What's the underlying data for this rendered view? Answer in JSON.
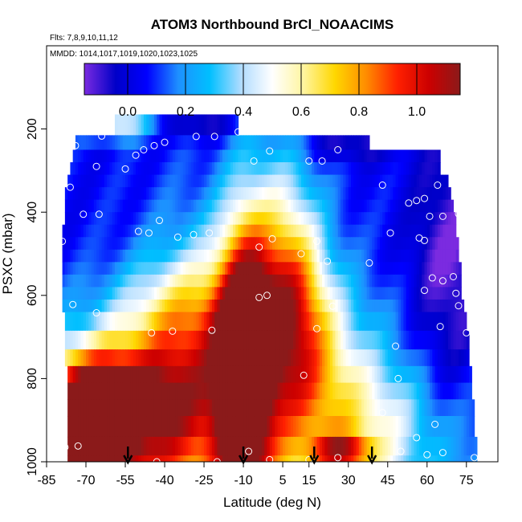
{
  "chart_data": {
    "type": "heatmap",
    "title": "ATOM3 Northbound BrCl_NOAACIMS",
    "subtitle_flights": "Flts: 7,8,9,10,11,12",
    "subtitle_dates": "MMDD: 1014,1017,1019,1020,1023,1025",
    "xlabel": "Latitude (deg N)",
    "ylabel": "PSXC (mbar)",
    "xlim": [
      -85,
      87
    ],
    "ylim": [
      1000,
      0
    ],
    "x_ticks": [
      -85,
      -70,
      -55,
      -40,
      -25,
      -10,
      5,
      15,
      30,
      45,
      60,
      75
    ],
    "y_ticks": [
      200,
      400,
      600,
      800,
      1000
    ],
    "colorbar": {
      "range": [
        -0.15,
        1.15
      ],
      "ticks": [
        0.0,
        0.2,
        0.4,
        0.6,
        0.8,
        1.0
      ],
      "tick_labels": [
        "0.0",
        "0.2",
        "0.4",
        "0.6",
        "0.8",
        "1.0"
      ],
      "colors": [
        "#7b2be0",
        "#0000c8",
        "#0000ff",
        "#1e90ff",
        "#00bfff",
        "#b0dcff",
        "#ffffff",
        "#fff5a0",
        "#ffd700",
        "#ff8c00",
        "#ff2000",
        "#cc0000",
        "#8b1a1a"
      ]
    },
    "layers": [
      {
        "p": [
          165,
          215
        ],
        "lat": [
          -59,
          -12
        ]
      },
      {
        "p": [
          215,
          250
        ],
        "lat": [
          -74,
          38
        ]
      },
      {
        "p": [
          250,
          280
        ],
        "lat": [
          -75,
          65
        ]
      },
      {
        "p": [
          280,
          310
        ],
        "lat": [
          -76,
          65
        ]
      },
      {
        "p": [
          310,
          340
        ],
        "lat": [
          -77,
          68
        ]
      },
      {
        "p": [
          340,
          370
        ],
        "lat": [
          -78,
          69
        ]
      },
      {
        "p": [
          370,
          400
        ],
        "lat": [
          -78,
          70
        ]
      },
      {
        "p": [
          400,
          430
        ],
        "lat": [
          -78,
          71
        ]
      },
      {
        "p": [
          430,
          460
        ],
        "lat": [
          -79,
          71
        ]
      },
      {
        "p": [
          460,
          490
        ],
        "lat": [
          -79,
          72
        ]
      },
      {
        "p": [
          490,
          520
        ],
        "lat": [
          -79,
          72
        ]
      },
      {
        "p": [
          520,
          550
        ],
        "lat": [
          -79,
          73
        ]
      },
      {
        "p": [
          550,
          580
        ],
        "lat": [
          -79,
          73
        ]
      },
      {
        "p": [
          580,
          610
        ],
        "lat": [
          -79,
          73
        ]
      },
      {
        "p": [
          610,
          640
        ],
        "lat": [
          -79,
          74
        ]
      },
      {
        "p": [
          640,
          685
        ],
        "lat": [
          -78,
          75
        ]
      },
      {
        "p": [
          685,
          730
        ],
        "lat": [
          -78,
          76
        ]
      },
      {
        "p": [
          730,
          770
        ],
        "lat": [
          -78,
          76
        ]
      },
      {
        "p": [
          770,
          810
        ],
        "lat": [
          -77,
          77
        ]
      },
      {
        "p": [
          810,
          850
        ],
        "lat": [
          -77,
          77
        ]
      },
      {
        "p": [
          850,
          890
        ],
        "lat": [
          -77,
          78
        ]
      },
      {
        "p": [
          890,
          940
        ],
        "lat": [
          -77,
          78
        ]
      },
      {
        "p": [
          940,
          985
        ],
        "lat": [
          -77,
          79
        ]
      },
      {
        "p": [
          985,
          1000
        ],
        "lat": [
          -77,
          79
        ]
      }
    ],
    "features": [
      {
        "lat": -59,
        "p": 190,
        "a": 0.4,
        "w": 10,
        "h": 25
      },
      {
        "lat": -26,
        "p": 190,
        "a": -0.15,
        "w": 10,
        "h": 25
      },
      {
        "lat": -10,
        "p": 800,
        "a": 1.0,
        "w": 7,
        "h": 260
      },
      {
        "lat": -25,
        "p": 770,
        "a": 0.55,
        "w": 16,
        "h": 220
      },
      {
        "lat": -70,
        "p": 950,
        "a": 1.0,
        "w": 10,
        "h": 90
      },
      {
        "lat": -55,
        "p": 920,
        "a": 0.7,
        "w": 20,
        "h": 120
      },
      {
        "lat": -65,
        "p": 820,
        "a": 0.5,
        "w": 20,
        "h": 80
      },
      {
        "lat": 5,
        "p": 650,
        "a": 0.5,
        "w": 12,
        "h": 180
      },
      {
        "lat": 20,
        "p": 850,
        "a": 0.4,
        "w": 15,
        "h": 200
      },
      {
        "lat": 45,
        "p": 900,
        "a": 0.2,
        "w": 15,
        "h": 100
      },
      {
        "lat": 28,
        "p": 975,
        "a": 0.5,
        "w": 8,
        "h": 30
      },
      {
        "lat": 10,
        "p": 550,
        "a": 0.25,
        "w": 8,
        "h": 200
      },
      {
        "lat": -40,
        "p": 650,
        "a": 0.25,
        "w": 20,
        "h": 100
      },
      {
        "lat": 30,
        "p": 240,
        "a": -0.15,
        "w": 12,
        "h": 30
      },
      {
        "lat": 0,
        "p": 560,
        "a": 0.15,
        "w": 8,
        "h": 300
      },
      {
        "lat": 70,
        "p": 700,
        "a": -0.12,
        "w": 12,
        "h": 250
      },
      {
        "lat": 68,
        "p": 500,
        "a": -0.12,
        "w": 10,
        "h": 250
      }
    ],
    "points": [
      {
        "lat": -74,
        "p": 240
      },
      {
        "lat": -64,
        "p": 217
      },
      {
        "lat": -51,
        "p": 263
      },
      {
        "lat": -44,
        "p": 240
      },
      {
        "lat": -40,
        "p": 232
      },
      {
        "lat": -28,
        "p": 218
      },
      {
        "lat": -21,
        "p": 218
      },
      {
        "lat": -12,
        "p": 207
      },
      {
        "lat": -66,
        "p": 290
      },
      {
        "lat": -55,
        "p": 296
      },
      {
        "lat": -48,
        "p": 250
      },
      {
        "lat": 0,
        "p": 253
      },
      {
        "lat": -6,
        "p": 277
      },
      {
        "lat": 15,
        "p": 277
      },
      {
        "lat": 20,
        "p": 277
      },
      {
        "lat": 26,
        "p": 250
      },
      {
        "lat": 43,
        "p": 335
      },
      {
        "lat": 53,
        "p": 378
      },
      {
        "lat": 56,
        "p": 372
      },
      {
        "lat": 59,
        "p": 367
      },
      {
        "lat": 64,
        "p": 335
      },
      {
        "lat": -76,
        "p": 340
      },
      {
        "lat": -71,
        "p": 405
      },
      {
        "lat": -65,
        "p": 405
      },
      {
        "lat": -42,
        "p": 420
      },
      {
        "lat": -46,
        "p": 450
      },
      {
        "lat": -50,
        "p": 446
      },
      {
        "lat": -35,
        "p": 460
      },
      {
        "lat": -29,
        "p": 454
      },
      {
        "lat": -23,
        "p": 450
      },
      {
        "lat": -4,
        "p": 484
      },
      {
        "lat": 1,
        "p": 464
      },
      {
        "lat": 12,
        "p": 500
      },
      {
        "lat": 18,
        "p": 470
      },
      {
        "lat": 22,
        "p": 518
      },
      {
        "lat": 38,
        "p": 522
      },
      {
        "lat": 46,
        "p": 450
      },
      {
        "lat": 57,
        "p": 462
      },
      {
        "lat": 59,
        "p": 468
      },
      {
        "lat": 61,
        "p": 410
      },
      {
        "lat": 66,
        "p": 410
      },
      {
        "lat": 72,
        "p": 404
      },
      {
        "lat": -79,
        "p": 470
      },
      {
        "lat": -75,
        "p": 622
      },
      {
        "lat": -66,
        "p": 642
      },
      {
        "lat": -45,
        "p": 690
      },
      {
        "lat": -37,
        "p": 686
      },
      {
        "lat": -22,
        "p": 684
      },
      {
        "lat": -4,
        "p": 605
      },
      {
        "lat": -1,
        "p": 600
      },
      {
        "lat": 18,
        "p": 680
      },
      {
        "lat": 24,
        "p": 626
      },
      {
        "lat": 13,
        "p": 792
      },
      {
        "lat": 48,
        "p": 722
      },
      {
        "lat": 49,
        "p": 800
      },
      {
        "lat": 59,
        "p": 588
      },
      {
        "lat": 62,
        "p": 558
      },
      {
        "lat": 66,
        "p": 565
      },
      {
        "lat": 70,
        "p": 555
      },
      {
        "lat": 65,
        "p": 675
      },
      {
        "lat": 71,
        "p": 595
      },
      {
        "lat": 72,
        "p": 625
      },
      {
        "lat": 75,
        "p": 690
      },
      {
        "lat": 43,
        "p": 882
      },
      {
        "lat": 63,
        "p": 910
      },
      {
        "lat": 56,
        "p": 942
      },
      {
        "lat": -78,
        "p": 965
      },
      {
        "lat": -73,
        "p": 962
      },
      {
        "lat": -43,
        "p": 1000
      },
      {
        "lat": -20,
        "p": 1000
      },
      {
        "lat": -8,
        "p": 975
      },
      {
        "lat": 0,
        "p": 995
      },
      {
        "lat": 15,
        "p": 995
      },
      {
        "lat": 26,
        "p": 990
      },
      {
        "lat": 50,
        "p": 975
      },
      {
        "lat": 60,
        "p": 983
      },
      {
        "lat": 66,
        "p": 978
      },
      {
        "lat": 78,
        "p": 990
      }
    ],
    "arrows_lat": [
      -54,
      -10,
      17,
      39
    ]
  }
}
